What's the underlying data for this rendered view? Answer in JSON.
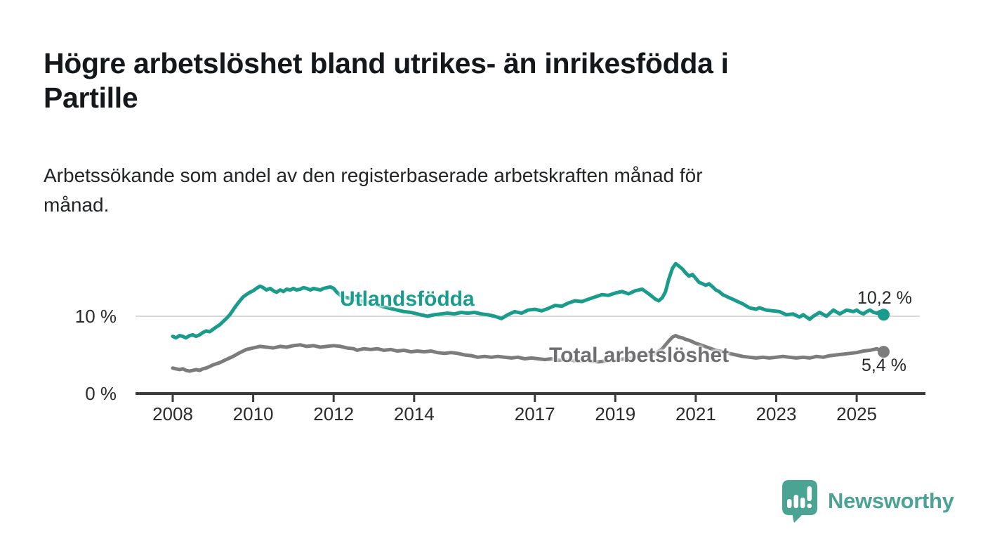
{
  "header": {
    "title": "Högre arbetslöshet bland utrikes- än inrikesfödda i Partille",
    "title_lines": [
      "Högre arbetslöshet bland utrikes- än inrikesfödda i",
      "Partille"
    ],
    "subtitle": "Arbetssökande som andel av den registerbaserade arbetskraften månad för månad.",
    "subtitle_lines": [
      "Arbetssökande som andel av den registerbaserade arbetskraften månad för",
      "månad."
    ]
  },
  "branding": {
    "name": "Newsworthy",
    "icon": "newsworthy-speech-bubble-bar-chart-icon",
    "color": "#4BA394"
  },
  "chart_data": {
    "type": "line",
    "title": "Högre arbetslöshet bland utrikes- än inrikesfödda i Partille",
    "subtitle": "Arbetssökande som andel av den registerbaserade arbetskraften månad för månad.",
    "unit": "%",
    "xlabel": "",
    "ylabel": "",
    "legend": "inline-labels",
    "grid": "horizontal-10-only",
    "xlim": [
      2007.1,
      2026.6
    ],
    "ylim": [
      0,
      18
    ],
    "x_axis": {
      "ticks": [
        2008,
        2010,
        2012,
        2014,
        2017,
        2019,
        2021,
        2023,
        2025
      ]
    },
    "y_axis": {
      "ticks": [
        {
          "value": 0,
          "label": "0 %"
        },
        {
          "value": 10,
          "label": "10 %"
        }
      ],
      "gridlines": [
        10
      ]
    },
    "style": {
      "axis_color": "#3a3a3a",
      "grid_color": "#d9d9d9",
      "tick_label_color": "#2b2b2b",
      "background": "#ffffff"
    },
    "series": [
      {
        "id": "utlandsfodda",
        "name": "Utlandsfödda",
        "color": "#199c8b",
        "end_value": 10.2,
        "end_label": "10,2 %",
        "points": [
          [
            2008.0,
            7.4
          ],
          [
            2008.08,
            7.2
          ],
          [
            2008.17,
            7.5
          ],
          [
            2008.25,
            7.4
          ],
          [
            2008.33,
            7.2
          ],
          [
            2008.42,
            7.5
          ],
          [
            2008.5,
            7.6
          ],
          [
            2008.58,
            7.4
          ],
          [
            2008.67,
            7.6
          ],
          [
            2008.75,
            7.9
          ],
          [
            2008.83,
            8.1
          ],
          [
            2008.92,
            8.0
          ],
          [
            2009.0,
            8.3
          ],
          [
            2009.08,
            8.6
          ],
          [
            2009.17,
            8.9
          ],
          [
            2009.25,
            9.3
          ],
          [
            2009.33,
            9.7
          ],
          [
            2009.42,
            10.2
          ],
          [
            2009.5,
            10.8
          ],
          [
            2009.58,
            11.4
          ],
          [
            2009.67,
            12.0
          ],
          [
            2009.75,
            12.5
          ],
          [
            2009.83,
            12.8
          ],
          [
            2009.92,
            13.1
          ],
          [
            2010.0,
            13.3
          ],
          [
            2010.08,
            13.6
          ],
          [
            2010.17,
            13.9
          ],
          [
            2010.25,
            13.7
          ],
          [
            2010.33,
            13.4
          ],
          [
            2010.42,
            13.6
          ],
          [
            2010.5,
            13.3
          ],
          [
            2010.58,
            13.1
          ],
          [
            2010.67,
            13.4
          ],
          [
            2010.75,
            13.2
          ],
          [
            2010.83,
            13.5
          ],
          [
            2010.92,
            13.4
          ],
          [
            2011.0,
            13.6
          ],
          [
            2011.08,
            13.4
          ],
          [
            2011.17,
            13.5
          ],
          [
            2011.25,
            13.7
          ],
          [
            2011.33,
            13.6
          ],
          [
            2011.42,
            13.4
          ],
          [
            2011.5,
            13.6
          ],
          [
            2011.58,
            13.5
          ],
          [
            2011.67,
            13.4
          ],
          [
            2011.75,
            13.6
          ],
          [
            2011.83,
            13.7
          ],
          [
            2011.92,
            13.8
          ],
          [
            2012.0,
            13.6
          ],
          [
            2012.08,
            13.1
          ],
          [
            2012.17,
            12.7
          ],
          [
            2012.25,
            12.5
          ],
          [
            2012.42,
            12.3
          ],
          [
            2012.58,
            12.1
          ],
          [
            2012.75,
            11.9
          ],
          [
            2012.92,
            11.7
          ],
          [
            2013.08,
            11.5
          ],
          [
            2013.25,
            11.2
          ],
          [
            2013.42,
            11.0
          ],
          [
            2013.58,
            10.8
          ],
          [
            2013.75,
            10.6
          ],
          [
            2013.92,
            10.5
          ],
          [
            2014.08,
            10.3
          ],
          [
            2014.25,
            10.1
          ],
          [
            2014.33,
            10.0
          ],
          [
            2014.5,
            10.2
          ],
          [
            2014.67,
            10.3
          ],
          [
            2014.83,
            10.4
          ],
          [
            2015.0,
            10.3
          ],
          [
            2015.17,
            10.5
          ],
          [
            2015.33,
            10.4
          ],
          [
            2015.5,
            10.5
          ],
          [
            2015.67,
            10.3
          ],
          [
            2015.83,
            10.2
          ],
          [
            2016.0,
            10.0
          ],
          [
            2016.17,
            9.7
          ],
          [
            2016.33,
            10.2
          ],
          [
            2016.5,
            10.6
          ],
          [
            2016.67,
            10.4
          ],
          [
            2016.83,
            10.8
          ],
          [
            2017.0,
            10.9
          ],
          [
            2017.17,
            10.7
          ],
          [
            2017.33,
            11.0
          ],
          [
            2017.5,
            11.4
          ],
          [
            2017.67,
            11.3
          ],
          [
            2017.83,
            11.7
          ],
          [
            2018.0,
            12.0
          ],
          [
            2018.17,
            11.9
          ],
          [
            2018.33,
            12.2
          ],
          [
            2018.5,
            12.5
          ],
          [
            2018.67,
            12.8
          ],
          [
            2018.83,
            12.7
          ],
          [
            2019.0,
            13.0
          ],
          [
            2019.17,
            13.2
          ],
          [
            2019.33,
            12.9
          ],
          [
            2019.5,
            13.3
          ],
          [
            2019.67,
            13.5
          ],
          [
            2019.83,
            12.9
          ],
          [
            2020.0,
            12.2
          ],
          [
            2020.08,
            12.0
          ],
          [
            2020.17,
            12.4
          ],
          [
            2020.25,
            13.2
          ],
          [
            2020.33,
            14.8
          ],
          [
            2020.42,
            16.2
          ],
          [
            2020.5,
            16.8
          ],
          [
            2020.58,
            16.5
          ],
          [
            2020.67,
            16.1
          ],
          [
            2020.75,
            15.6
          ],
          [
            2020.83,
            15.2
          ],
          [
            2020.92,
            15.4
          ],
          [
            2021.0,
            14.9
          ],
          [
            2021.08,
            14.4
          ],
          [
            2021.17,
            14.2
          ],
          [
            2021.25,
            14.0
          ],
          [
            2021.33,
            14.2
          ],
          [
            2021.42,
            13.8
          ],
          [
            2021.5,
            13.4
          ],
          [
            2021.58,
            13.2
          ],
          [
            2021.67,
            12.8
          ],
          [
            2021.75,
            12.6
          ],
          [
            2021.83,
            12.4
          ],
          [
            2021.92,
            12.2
          ],
          [
            2022.0,
            12.0
          ],
          [
            2022.17,
            11.6
          ],
          [
            2022.33,
            11.1
          ],
          [
            2022.5,
            10.9
          ],
          [
            2022.58,
            11.1
          ],
          [
            2022.75,
            10.8
          ],
          [
            2022.92,
            10.7
          ],
          [
            2023.08,
            10.6
          ],
          [
            2023.25,
            10.2
          ],
          [
            2023.42,
            10.3
          ],
          [
            2023.58,
            9.9
          ],
          [
            2023.67,
            10.2
          ],
          [
            2023.83,
            9.6
          ],
          [
            2023.92,
            10.0
          ],
          [
            2024.08,
            10.5
          ],
          [
            2024.25,
            10.0
          ],
          [
            2024.42,
            10.8
          ],
          [
            2024.58,
            10.3
          ],
          [
            2024.75,
            10.8
          ],
          [
            2024.92,
            10.6
          ],
          [
            2025.0,
            10.8
          ],
          [
            2025.08,
            10.5
          ],
          [
            2025.17,
            10.3
          ],
          [
            2025.25,
            10.6
          ],
          [
            2025.33,
            10.8
          ],
          [
            2025.42,
            10.5
          ],
          [
            2025.5,
            10.4
          ],
          [
            2025.58,
            10.6
          ],
          [
            2025.67,
            10.2
          ]
        ]
      },
      {
        "id": "total-arbetsloshet",
        "name": "Total arbetslöshet",
        "color": "#7c7c7c",
        "end_value": 5.4,
        "end_label": "5,4 %",
        "points": [
          [
            2008.0,
            3.3
          ],
          [
            2008.08,
            3.2
          ],
          [
            2008.17,
            3.1
          ],
          [
            2008.25,
            3.2
          ],
          [
            2008.33,
            3.0
          ],
          [
            2008.42,
            2.9
          ],
          [
            2008.5,
            3.0
          ],
          [
            2008.58,
            3.1
          ],
          [
            2008.67,
            3.0
          ],
          [
            2008.75,
            3.2
          ],
          [
            2008.83,
            3.3
          ],
          [
            2008.92,
            3.5
          ],
          [
            2009.0,
            3.7
          ],
          [
            2009.17,
            4.0
          ],
          [
            2009.33,
            4.4
          ],
          [
            2009.5,
            4.8
          ],
          [
            2009.67,
            5.3
          ],
          [
            2009.83,
            5.7
          ],
          [
            2010.0,
            5.9
          ],
          [
            2010.17,
            6.1
          ],
          [
            2010.33,
            6.0
          ],
          [
            2010.5,
            5.9
          ],
          [
            2010.67,
            6.1
          ],
          [
            2010.83,
            6.0
          ],
          [
            2011.0,
            6.2
          ],
          [
            2011.17,
            6.3
          ],
          [
            2011.33,
            6.1
          ],
          [
            2011.5,
            6.2
          ],
          [
            2011.67,
            6.0
          ],
          [
            2011.83,
            6.1
          ],
          [
            2012.0,
            6.2
          ],
          [
            2012.17,
            6.1
          ],
          [
            2012.33,
            5.9
          ],
          [
            2012.5,
            5.8
          ],
          [
            2012.58,
            5.6
          ],
          [
            2012.75,
            5.8
          ],
          [
            2012.92,
            5.7
          ],
          [
            2013.08,
            5.8
          ],
          [
            2013.25,
            5.6
          ],
          [
            2013.42,
            5.7
          ],
          [
            2013.58,
            5.5
          ],
          [
            2013.75,
            5.6
          ],
          [
            2013.92,
            5.4
          ],
          [
            2014.08,
            5.5
          ],
          [
            2014.25,
            5.4
          ],
          [
            2014.42,
            5.5
          ],
          [
            2014.58,
            5.3
          ],
          [
            2014.75,
            5.2
          ],
          [
            2014.92,
            5.3
          ],
          [
            2015.08,
            5.2
          ],
          [
            2015.25,
            5.0
          ],
          [
            2015.42,
            4.9
          ],
          [
            2015.58,
            4.7
          ],
          [
            2015.75,
            4.8
          ],
          [
            2015.92,
            4.7
          ],
          [
            2016.08,
            4.8
          ],
          [
            2016.25,
            4.7
          ],
          [
            2016.42,
            4.6
          ],
          [
            2016.58,
            4.7
          ],
          [
            2016.75,
            4.5
          ],
          [
            2016.92,
            4.6
          ],
          [
            2017.08,
            4.5
          ],
          [
            2017.25,
            4.4
          ],
          [
            2017.42,
            4.5
          ],
          [
            2017.58,
            4.3
          ],
          [
            2017.75,
            4.4
          ],
          [
            2017.92,
            4.3
          ],
          [
            2018.08,
            4.2
          ],
          [
            2018.25,
            4.3
          ],
          [
            2018.42,
            4.2
          ],
          [
            2018.58,
            4.1
          ],
          [
            2018.75,
            4.2
          ],
          [
            2018.92,
            4.3
          ],
          [
            2019.08,
            4.4
          ],
          [
            2019.25,
            4.5
          ],
          [
            2019.42,
            4.6
          ],
          [
            2019.58,
            4.7
          ],
          [
            2019.75,
            4.9
          ],
          [
            2019.92,
            5.1
          ],
          [
            2020.0,
            5.2
          ],
          [
            2020.17,
            5.8
          ],
          [
            2020.33,
            6.8
          ],
          [
            2020.42,
            7.3
          ],
          [
            2020.5,
            7.5
          ],
          [
            2020.58,
            7.3
          ],
          [
            2020.67,
            7.2
          ],
          [
            2020.75,
            7.0
          ],
          [
            2020.83,
            6.9
          ],
          [
            2020.92,
            6.7
          ],
          [
            2021.0,
            6.5
          ],
          [
            2021.17,
            6.2
          ],
          [
            2021.33,
            5.9
          ],
          [
            2021.5,
            5.6
          ],
          [
            2021.67,
            5.4
          ],
          [
            2021.83,
            5.2
          ],
          [
            2022.0,
            5.0
          ],
          [
            2022.17,
            4.8
          ],
          [
            2022.33,
            4.7
          ],
          [
            2022.5,
            4.6
          ],
          [
            2022.67,
            4.7
          ],
          [
            2022.83,
            4.6
          ],
          [
            2023.0,
            4.7
          ],
          [
            2023.17,
            4.8
          ],
          [
            2023.33,
            4.7
          ],
          [
            2023.5,
            4.6
          ],
          [
            2023.67,
            4.7
          ],
          [
            2023.83,
            4.6
          ],
          [
            2024.0,
            4.8
          ],
          [
            2024.17,
            4.7
          ],
          [
            2024.33,
            4.9
          ],
          [
            2024.5,
            5.0
          ],
          [
            2024.67,
            5.1
          ],
          [
            2024.83,
            5.2
          ],
          [
            2025.0,
            5.3
          ],
          [
            2025.17,
            5.5
          ],
          [
            2025.33,
            5.6
          ],
          [
            2025.42,
            5.7
          ],
          [
            2025.5,
            5.8
          ],
          [
            2025.58,
            5.6
          ],
          [
            2025.67,
            5.4
          ]
        ]
      }
    ]
  }
}
